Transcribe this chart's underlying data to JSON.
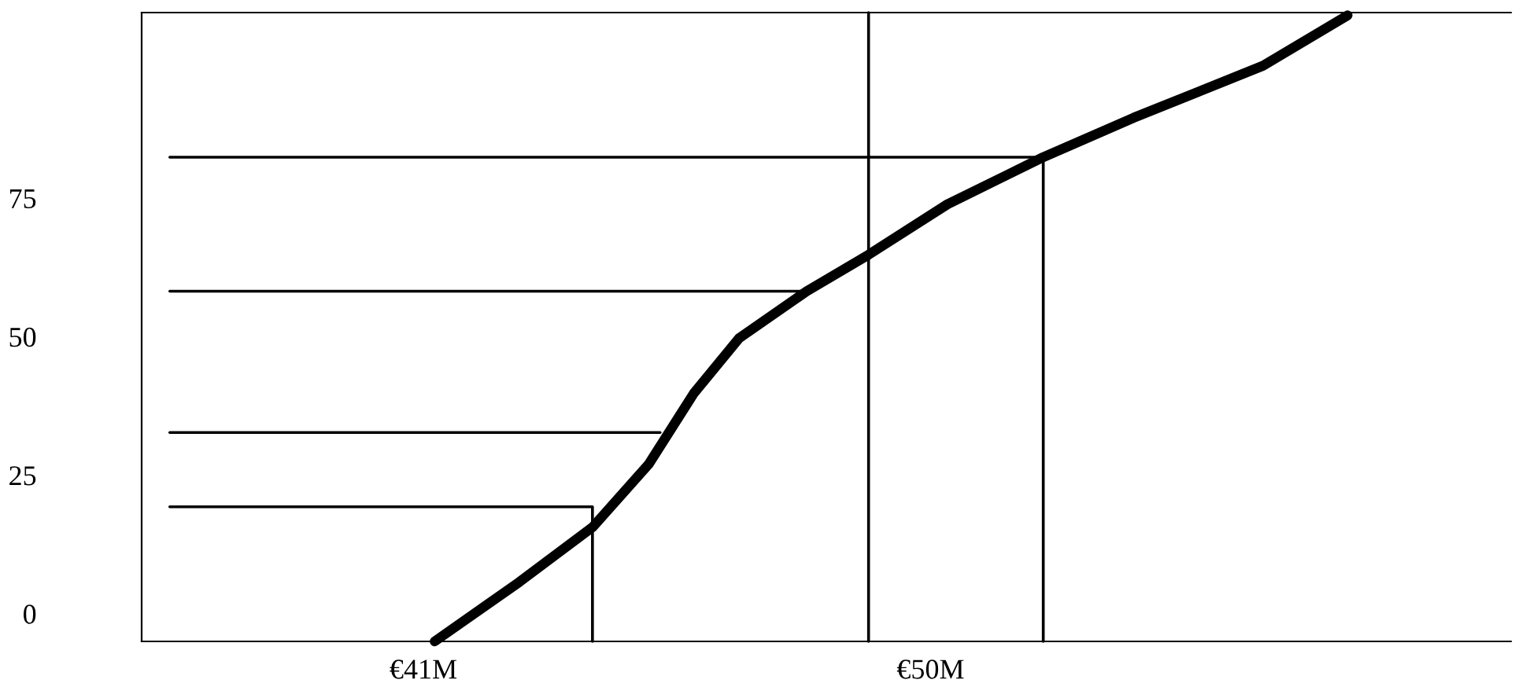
{
  "chart_data": {
    "type": "line",
    "xlim": [
      36,
      60.3
    ],
    "ylim": [
      -5,
      108.5
    ],
    "xticks": [
      {
        "value": 41,
        "label": "€41M"
      },
      {
        "value": 50,
        "label": "€50M"
      }
    ],
    "yticks": [
      0,
      25,
      50,
      75
    ],
    "grid": false,
    "legend": false,
    "marker": "none",
    "series": [
      {
        "color": "#000000",
        "x": [
          41.2,
          42.7,
          44.0,
          45.0,
          45.8,
          46.6,
          47.8,
          48.9,
          50.3,
          52.0,
          53.6,
          55.9,
          57.4
        ],
        "values": [
          -5,
          5.7,
          15.6,
          27.0,
          39.8,
          49.7,
          58.2,
          64.8,
          73.9,
          82.4,
          89.5,
          98.9,
          108.0
        ]
      },
      {
        "type": "line",
        "color": "#000000",
        "x": [
          36.5,
          52.0,
          52.0
        ],
        "values": [
          82.4,
          82.4,
          -5
        ]
      },
      {
        "type": "line",
        "color": "#000000",
        "x": [
          36.5,
          47.8
        ],
        "values": [
          58.2,
          58.2
        ]
      },
      {
        "type": "line",
        "color": "#000000",
        "x": [
          36.5,
          45.2
        ],
        "values": [
          32.7,
          32.7
        ]
      },
      {
        "type": "line",
        "color": "#000000",
        "x": [
          36.5,
          44.0,
          44.0
        ],
        "values": [
          19.3,
          19.3,
          -5
        ]
      },
      {
        "type": "line",
        "color": "#000000",
        "x": [
          48.9,
          48.9
        ],
        "values": [
          108.5,
          -5
        ]
      }
    ]
  }
}
